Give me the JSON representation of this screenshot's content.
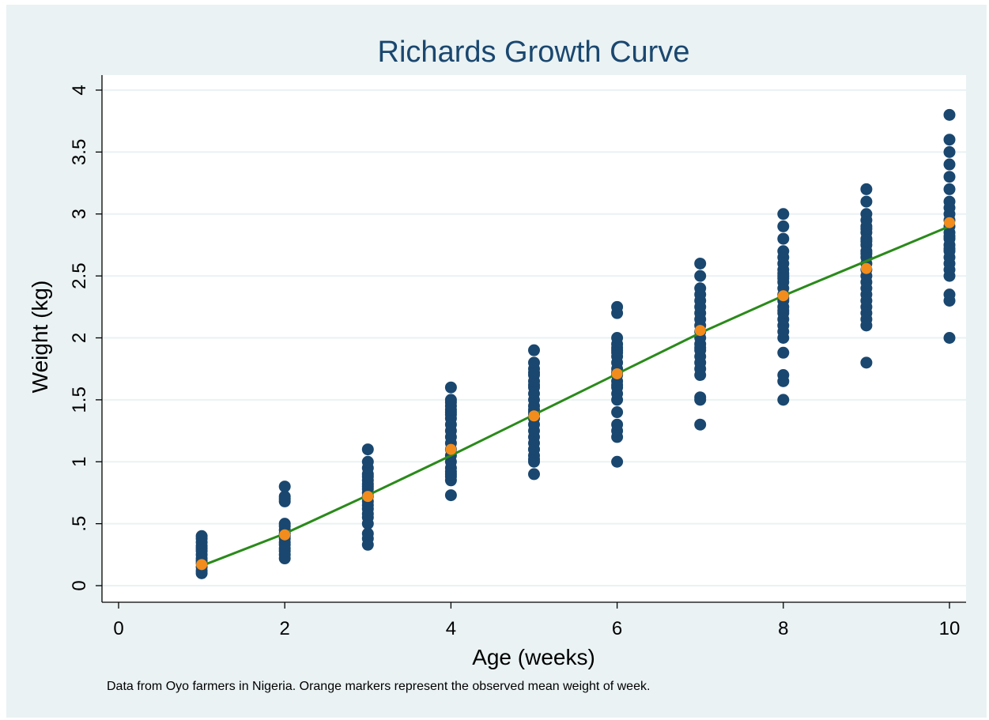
{
  "chart_data": {
    "type": "scatter",
    "title": "Richards Growth Curve",
    "xlabel": "Age (weeks)",
    "ylabel": "Weight (kg)",
    "note": "Data from Oyo farmers in Nigeria. Orange markers represent the observed mean weight of week.",
    "xlim": [
      0,
      10
    ],
    "ylim": [
      0,
      4
    ],
    "xticks": [
      0,
      2,
      4,
      6,
      8,
      10
    ],
    "xtick_labels": [
      "0",
      "2",
      "4",
      "6",
      "8",
      "10"
    ],
    "yticks": [
      0,
      0.5,
      1,
      1.5,
      2,
      2.5,
      3,
      3.5,
      4
    ],
    "ytick_labels": [
      "0",
      ".5",
      "1",
      "1.5",
      "2",
      "2.5",
      "3",
      "3.5",
      "4"
    ],
    "grid": true,
    "legend": "none",
    "colors": {
      "observed": "#1a476f",
      "mean": "#f28c1c",
      "fit": "#2a8a1a",
      "grid": "#eaf2f3",
      "figure_bg": "#eaf2f3",
      "plot_bg": "#ffffff",
      "title": "#1a476f"
    },
    "series": [
      {
        "type": "scatter",
        "x": [
          1,
          1,
          1,
          1,
          1,
          1,
          1,
          1,
          1,
          1,
          1,
          1,
          1,
          2,
          2,
          2,
          2,
          2,
          2,
          2,
          2,
          2,
          2,
          2,
          2,
          2,
          2,
          2,
          2,
          3,
          3,
          3,
          3,
          3,
          3,
          3,
          3,
          3,
          3,
          3,
          3,
          3,
          3,
          3,
          3,
          3,
          3,
          3,
          3,
          4,
          4,
          4,
          4,
          4,
          4,
          4,
          4,
          4,
          4,
          4,
          4,
          4,
          4,
          4,
          4,
          4,
          4,
          4,
          4,
          4,
          5,
          5,
          5,
          5,
          5,
          5,
          5,
          5,
          5,
          5,
          5,
          5,
          5,
          5,
          5,
          5,
          5,
          5,
          5,
          5,
          5,
          5,
          5,
          5,
          5,
          6,
          6,
          6,
          6,
          6,
          6,
          6,
          6,
          6,
          6,
          6,
          6,
          6,
          6,
          6,
          6,
          6,
          6,
          6,
          6,
          6,
          6,
          7,
          7,
          7,
          7,
          7,
          7,
          7,
          7,
          7,
          7,
          7,
          7,
          7,
          7,
          7,
          7,
          7,
          7,
          7,
          7,
          7,
          8,
          8,
          8,
          8,
          8,
          8,
          8,
          8,
          8,
          8,
          8,
          8,
          8,
          8,
          8,
          8,
          8,
          8,
          8,
          8,
          8,
          8,
          8,
          8,
          8,
          8,
          9,
          9,
          9,
          9,
          9,
          9,
          9,
          9,
          9,
          9,
          9,
          9,
          9,
          9,
          9,
          9,
          9,
          9,
          9,
          9,
          9,
          9,
          9,
          9,
          9,
          10,
          10,
          10,
          10,
          10,
          10,
          10,
          10,
          10,
          10,
          10,
          10,
          10,
          10,
          10,
          10,
          10,
          10,
          10,
          10,
          10,
          10,
          10,
          10
        ],
        "y": [
          0.1,
          0.12,
          0.15,
          0.18,
          0.2,
          0.22,
          0.25,
          0.28,
          0.3,
          0.32,
          0.35,
          0.38,
          0.4,
          0.22,
          0.25,
          0.28,
          0.3,
          0.33,
          0.35,
          0.38,
          0.4,
          0.42,
          0.45,
          0.48,
          0.5,
          0.68,
          0.7,
          0.72,
          0.8,
          0.33,
          0.38,
          0.42,
          0.5,
          0.55,
          0.58,
          0.62,
          0.65,
          0.68,
          0.72,
          0.75,
          0.78,
          0.8,
          0.82,
          0.85,
          0.88,
          0.9,
          0.95,
          1.0,
          1.1,
          0.73,
          0.85,
          0.88,
          0.92,
          0.95,
          1.0,
          1.05,
          1.1,
          1.15,
          1.2,
          1.25,
          1.3,
          1.35,
          1.38,
          1.4,
          1.42,
          1.45,
          1.48,
          1.5,
          1.6,
          0.9,
          0.9,
          1.0,
          1.02,
          1.05,
          1.1,
          1.15,
          1.2,
          1.25,
          1.3,
          1.35,
          1.38,
          1.4,
          1.42,
          1.45,
          1.5,
          1.55,
          1.6,
          1.62,
          1.65,
          1.7,
          1.72,
          1.75,
          1.8,
          1.9,
          1.1,
          1.0,
          1.2,
          1.25,
          1.3,
          1.5,
          1.55,
          1.6,
          1.65,
          1.7,
          1.72,
          1.75,
          1.8,
          1.85,
          1.88,
          1.9,
          1.92,
          1.95,
          2.0,
          2.2,
          2.25,
          1.4,
          1.62,
          1.3,
          1.5,
          1.52,
          1.7,
          1.75,
          1.8,
          1.85,
          1.9,
          1.95,
          2.0,
          2.05,
          2.1,
          2.2,
          2.25,
          2.3,
          2.35,
          2.4,
          2.5,
          2.6,
          1.92,
          2.15,
          1.5,
          1.65,
          1.7,
          1.88,
          2.0,
          2.05,
          2.1,
          2.15,
          2.2,
          2.25,
          2.3,
          2.35,
          2.4,
          2.45,
          2.5,
          2.55,
          2.6,
          2.65,
          2.7,
          2.8,
          2.9,
          3.0,
          2.22,
          2.32,
          2.48,
          2.52,
          1.8,
          2.1,
          2.15,
          2.2,
          2.25,
          2.3,
          2.35,
          2.4,
          2.45,
          2.5,
          2.55,
          2.6,
          2.65,
          2.7,
          2.75,
          2.8,
          2.85,
          2.9,
          2.95,
          3.0,
          3.1,
          3.2,
          2.88,
          2.78,
          2.68,
          2.0,
          2.3,
          2.35,
          2.5,
          2.55,
          2.6,
          2.65,
          2.7,
          2.75,
          2.8,
          2.85,
          2.9,
          2.95,
          3.0,
          3.1,
          3.2,
          3.3,
          3.4,
          3.5,
          3.6,
          3.8,
          2.72,
          2.82,
          3.05
        ]
      },
      {
        "type": "scatter",
        "x": [
          1,
          2,
          3,
          4,
          5,
          6,
          7,
          8,
          9,
          10
        ],
        "y": [
          0.17,
          0.41,
          0.72,
          1.1,
          1.37,
          1.71,
          2.06,
          2.34,
          2.56,
          2.93
        ]
      },
      {
        "type": "line",
        "x": [
          1,
          2,
          3,
          4,
          5,
          6,
          7,
          8,
          9,
          10
        ],
        "y": [
          0.16,
          0.42,
          0.73,
          1.05,
          1.38,
          1.71,
          2.04,
          2.34,
          2.62,
          2.9
        ]
      }
    ]
  }
}
